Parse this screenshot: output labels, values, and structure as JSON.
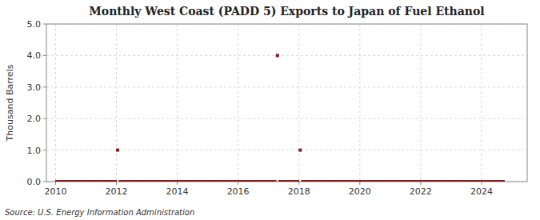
{
  "chart_data": {
    "type": "scatter",
    "title": "Monthly West Coast (PADD 5) Exports to Japan of Fuel Ethanol",
    "y_label": "Thousand Barrels",
    "annotations": [
      "Source: U.S. Energy Information Administration"
    ],
    "marker": "square",
    "color": "#8b1a1a",
    "grid": true,
    "xlim": [
      2009.7,
      2025.5
    ],
    "ylim": [
      0.0,
      5.0
    ],
    "xticks": [
      2010,
      2012,
      2014,
      2016,
      2018,
      2020,
      2022,
      2024
    ],
    "yticks": [
      {
        "value": 0.0,
        "label": "0.0"
      },
      {
        "value": 1.0,
        "label": "1.0"
      },
      {
        "value": 2.0,
        "label": "2.0"
      },
      {
        "value": 3.0,
        "label": "3.0"
      },
      {
        "value": 4.0,
        "label": "4.0"
      },
      {
        "value": 5.0,
        "label": "5.0"
      }
    ],
    "x": [
      2010.0416666666667,
      2010.125,
      2010.2083333333333,
      2010.2916666666667,
      2010.375,
      2010.4583333333333,
      2010.5416666666667,
      2010.625,
      2010.7083333333333,
      2010.7916666666667,
      2010.875,
      2010.9583333333333,
      2011.0416666666667,
      2011.125,
      2011.2083333333333,
      2011.2916666666667,
      2011.375,
      2011.4583333333333,
      2011.5416666666667,
      2011.625,
      2011.7083333333333,
      2011.7916666666667,
      2011.875,
      2011.9583333333333,
      2012.0416666666667,
      2012.125,
      2012.2083333333333,
      2012.2916666666667,
      2012.375,
      2012.4583333333333,
      2012.5416666666667,
      2012.625,
      2012.7083333333333,
      2012.7916666666667,
      2012.875,
      2012.9583333333333,
      2013.0416666666667,
      2013.125,
      2013.2083333333333,
      2013.2916666666667,
      2013.375,
      2013.4583333333333,
      2013.5416666666667,
      2013.625,
      2013.7083333333333,
      2013.7916666666667,
      2013.875,
      2013.9583333333333,
      2014.0416666666667,
      2014.125,
      2014.2083333333333,
      2014.2916666666667,
      2014.375,
      2014.4583333333333,
      2014.5416666666667,
      2014.625,
      2014.7083333333333,
      2014.7916666666667,
      2014.875,
      2014.9583333333333,
      2015.0416666666667,
      2015.125,
      2015.2083333333333,
      2015.2916666666667,
      2015.375,
      2015.4583333333333,
      2015.5416666666667,
      2015.625,
      2015.7083333333333,
      2015.7916666666667,
      2015.875,
      2015.9583333333333,
      2016.0416666666667,
      2016.125,
      2016.2083333333333,
      2016.2916666666667,
      2016.375,
      2016.4583333333333,
      2016.5416666666667,
      2016.625,
      2016.7083333333333,
      2016.7916666666667,
      2016.875,
      2016.9583333333333,
      2017.0416666666667,
      2017.125,
      2017.2083333333333,
      2017.2916666666667,
      2017.375,
      2017.4583333333333,
      2017.5416666666667,
      2017.625,
      2017.7083333333333,
      2017.7916666666667,
      2017.875,
      2017.9583333333333,
      2018.0416666666667,
      2018.125,
      2018.2083333333333,
      2018.2916666666667,
      2018.375,
      2018.4583333333333,
      2018.5416666666667,
      2018.625,
      2018.7083333333333,
      2018.7916666666667,
      2018.875,
      2018.9583333333333,
      2019.0416666666667,
      2019.125,
      2019.2083333333333,
      2019.2916666666667,
      2019.375,
      2019.4583333333333,
      2019.5416666666667,
      2019.625,
      2019.7083333333333,
      2019.7916666666667,
      2019.875,
      2019.9583333333333,
      2020.0416666666667,
      2020.125,
      2020.2083333333333,
      2020.2916666666667,
      2020.375,
      2020.4583333333333,
      2020.5416666666667,
      2020.625,
      2020.7083333333333,
      2020.7916666666667,
      2020.875,
      2020.9583333333333,
      2021.0416666666667,
      2021.125,
      2021.2083333333333,
      2021.2916666666667,
      2021.375,
      2021.4583333333333,
      2021.5416666666667,
      2021.625,
      2021.7083333333333,
      2021.7916666666667,
      2021.875,
      2021.9583333333333,
      2022.0416666666667,
      2022.125,
      2022.2083333333333,
      2022.2916666666667,
      2022.375,
      2022.4583333333333,
      2022.5416666666667,
      2022.625,
      2022.7083333333333,
      2022.7916666666667,
      2022.875,
      2022.9583333333333,
      2023.0416666666667,
      2023.125,
      2023.2083333333333,
      2023.2916666666667,
      2023.375,
      2023.4583333333333,
      2023.5416666666667,
      2023.625,
      2023.7083333333333,
      2023.7916666666667,
      2023.875,
      2023.9583333333333,
      2024.0416666666667,
      2024.125,
      2024.2083333333333,
      2024.2916666666667,
      2024.375,
      2024.4583333333333,
      2024.5416666666667,
      2024.625,
      2024.7083333333333
    ],
    "values": [
      0,
      0,
      0,
      0,
      0,
      0,
      0,
      0,
      0,
      0,
      0,
      0,
      0,
      0,
      0,
      0,
      0,
      0,
      0,
      0,
      0,
      0,
      0,
      0,
      1,
      0,
      0,
      0,
      0,
      0,
      0,
      0,
      0,
      0,
      0,
      0,
      0,
      0,
      0,
      0,
      0,
      0,
      0,
      0,
      0,
      0,
      0,
      0,
      0,
      0,
      0,
      0,
      0,
      0,
      0,
      0,
      0,
      0,
      0,
      0,
      0,
      0,
      0,
      0,
      0,
      0,
      0,
      0,
      0,
      0,
      0,
      0,
      0,
      0,
      0,
      0,
      0,
      0,
      0,
      0,
      0,
      0,
      0,
      0,
      0,
      0,
      0,
      4,
      0,
      0,
      0,
      0,
      0,
      0,
      0,
      0,
      1,
      0,
      0,
      0,
      0,
      0,
      0,
      0,
      0,
      0,
      0,
      0,
      0,
      0,
      0,
      0,
      0,
      0,
      0,
      0,
      0,
      0,
      0,
      0,
      0,
      0,
      0,
      0,
      0,
      0,
      0,
      0,
      0,
      0,
      0,
      0,
      0,
      0,
      0,
      0,
      0,
      0,
      0,
      0,
      0,
      0,
      0,
      0,
      0,
      0,
      0,
      0,
      0,
      0,
      0,
      0,
      0,
      0,
      0,
      0,
      0,
      0,
      0,
      0,
      0,
      0,
      0,
      0,
      0,
      0,
      0,
      0,
      0,
      0,
      0,
      0,
      0,
      0,
      0,
      0,
      0
    ]
  }
}
